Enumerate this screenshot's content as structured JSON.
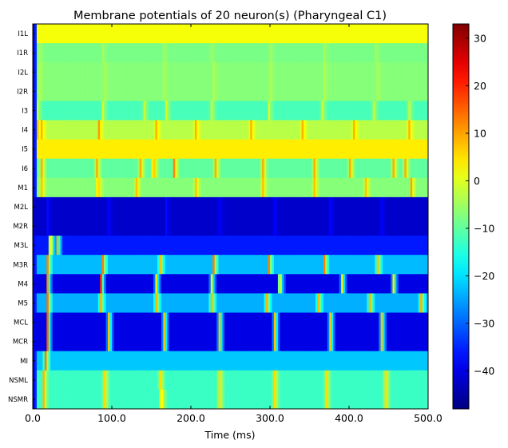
{
  "chart_data": {
    "type": "heatmap",
    "title": "Membrane potentials of 20 neuron(s) (Pharyngeal C1)",
    "xlabel": "Time (ms)",
    "ylabel": "",
    "xlim": [
      0,
      500
    ],
    "x_ticks": [
      "0.0",
      "100.0",
      "200.0",
      "300.0",
      "400.0",
      "500.0"
    ],
    "x_tick_values": [
      0,
      100,
      200,
      300,
      400,
      500
    ],
    "colorbar": {
      "colormap": "jet",
      "range": [
        -48,
        33
      ],
      "ticks": [
        "30",
        "20",
        "10",
        "0",
        "−10",
        "−20",
        "−30",
        "−40"
      ],
      "tick_values": [
        30,
        20,
        10,
        0,
        -10,
        -20,
        -30,
        -40
      ]
    },
    "rows": [
      {
        "label": "I1L",
        "base": 2,
        "peak": -6,
        "spike_times": [
          3,
          8,
          88,
          160,
          225,
          297,
          365,
          432,
          497
        ]
      },
      {
        "label": "I1R",
        "base": -8,
        "peak": -4,
        "spike_times": [
          8,
          88,
          165,
          225,
          300,
          368,
          433
        ]
      },
      {
        "label": "I2L",
        "base": -7,
        "peak": -3,
        "spike_times": [
          8,
          90,
          165,
          228,
          300,
          368,
          435
        ]
      },
      {
        "label": "I2R",
        "base": -7,
        "peak": -3,
        "spike_times": [
          8,
          90,
          165,
          228,
          300,
          368,
          435
        ]
      },
      {
        "label": "I3",
        "base": -12,
        "peak": 3,
        "spike_times": [
          5,
          88,
          140,
          168,
          225,
          298,
          365,
          430,
          475
        ]
      },
      {
        "label": "I4",
        "base": -3,
        "peak": 14,
        "spike_times": [
          5,
          10,
          83,
          155,
          205,
          275,
          340,
          405,
          475
        ]
      },
      {
        "label": "I5",
        "base": 4,
        "peak": 4,
        "spike_times": []
      },
      {
        "label": "I6",
        "base": -10,
        "peak": 18,
        "spike_times": [
          10,
          80,
          135,
          152,
          178,
          230,
          290,
          355,
          400,
          455,
          470
        ]
      },
      {
        "label": "M1",
        "base": -7,
        "peak": 14,
        "spike_times": [
          10,
          82,
          130,
          205,
          290,
          355,
          420,
          478
        ]
      },
      {
        "label": "M2L",
        "base": -42,
        "peak": -36,
        "spike_times": [
          18,
          95,
          168,
          235,
          305,
          375,
          440
        ]
      },
      {
        "label": "M2R",
        "base": -42,
        "peak": -36,
        "spike_times": [
          18,
          95,
          168,
          235,
          305,
          375,
          440
        ]
      },
      {
        "label": "M3L",
        "base": -36,
        "peak": 30,
        "spike_times": [
          22,
          30
        ]
      },
      {
        "label": "M3R",
        "base": -23,
        "peak": 22,
        "spike_times": [
          18,
          88,
          160,
          228,
          298,
          368,
          435
        ]
      },
      {
        "label": "M4",
        "base": -40,
        "peak": 25,
        "spike_times": [
          18,
          86,
          155,
          225,
          312,
          390,
          455
        ]
      },
      {
        "label": "M5",
        "base": -24,
        "peak": 24,
        "spike_times": [
          18,
          85,
          155,
          225,
          295,
          360,
          425,
          490
        ]
      },
      {
        "label": "MCL",
        "base": -40,
        "peak": 30,
        "spike_times": [
          18,
          95,
          165,
          235,
          305,
          375,
          440
        ]
      },
      {
        "label": "MCR",
        "base": -40,
        "peak": 30,
        "spike_times": [
          18,
          95,
          165,
          235,
          305,
          375,
          440
        ]
      },
      {
        "label": "MI",
        "base": -22,
        "peak": 30,
        "spike_times": [
          15
        ]
      },
      {
        "label": "NSML",
        "base": -13,
        "peak": 14,
        "spike_times": [
          13,
          90,
          160,
          235,
          305,
          370,
          445
        ]
      },
      {
        "label": "NSMR",
        "base": -13,
        "peak": 14,
        "spike_times": [
          13,
          90,
          162,
          235,
          305,
          370,
          445
        ]
      }
    ]
  }
}
